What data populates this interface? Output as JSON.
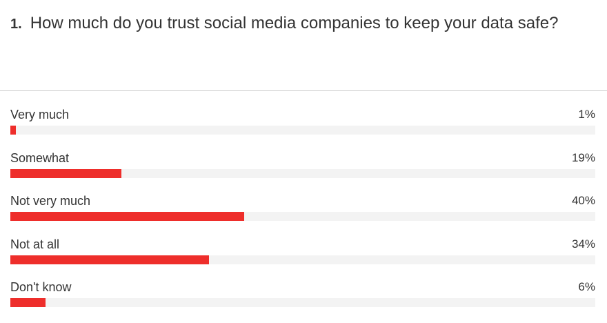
{
  "question": {
    "number": "1.",
    "text": "How much do you trust social media companies to keep your data safe?"
  },
  "colors": {
    "bar_fill": "#ee2e2b",
    "bar_track": "#f3f3f3",
    "text": "#333333"
  },
  "chart_data": {
    "type": "bar",
    "orientation": "horizontal",
    "categories": [
      "Very much",
      "Somewhat",
      "Not very much",
      "Not at all",
      "Don't know"
    ],
    "values": [
      1,
      19,
      40,
      34,
      6
    ],
    "value_labels": [
      "1%",
      "19%",
      "40%",
      "34%",
      "6%"
    ],
    "unit": "%",
    "xlim": [
      0,
      100
    ],
    "grid": false,
    "legend": "none"
  }
}
